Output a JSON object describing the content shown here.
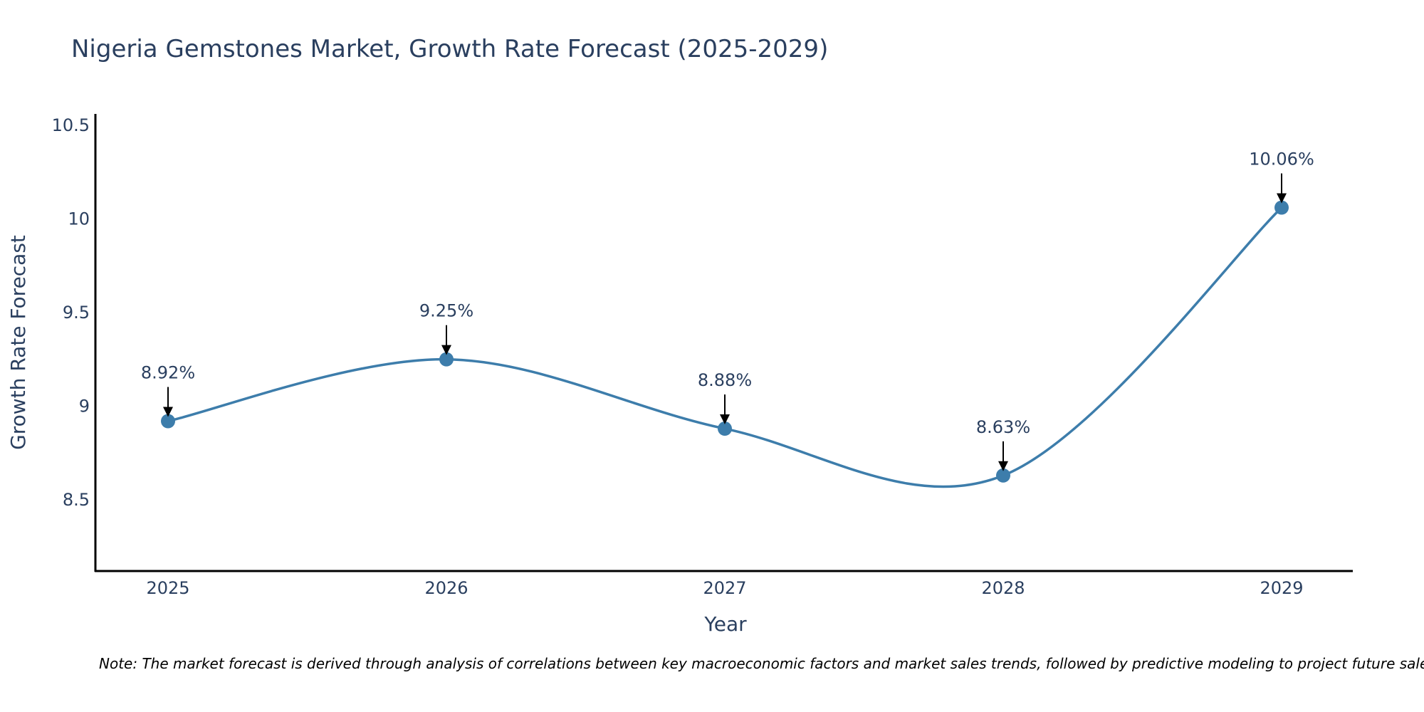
{
  "chart_data": {
    "type": "line",
    "title": "Nigeria Gemstones Market, Growth Rate Forecast (2025-2029)",
    "xlabel": "Year",
    "ylabel": "Growth Rate Forecast",
    "categories": [
      "2025",
      "2026",
      "2027",
      "2028",
      "2029"
    ],
    "values": [
      8.92,
      9.25,
      8.88,
      8.63,
      10.06
    ],
    "data_labels": [
      "8.92%",
      "9.25%",
      "8.88%",
      "8.63%",
      "10.06%"
    ],
    "ylim": [
      8.12,
      10.56
    ],
    "yticks": [
      8.5,
      9,
      9.5,
      10,
      10.5
    ],
    "ytick_labels": [
      "8.5",
      "9",
      "9.5",
      "10",
      "10.5"
    ],
    "line_shape": "spline",
    "series_color": "#3d7dab",
    "grid": false
  },
  "note": "Note: The market forecast is derived through analysis of correlations between key macroeconomic factors and market sales trends, followed by predictive modeling to project future sales."
}
